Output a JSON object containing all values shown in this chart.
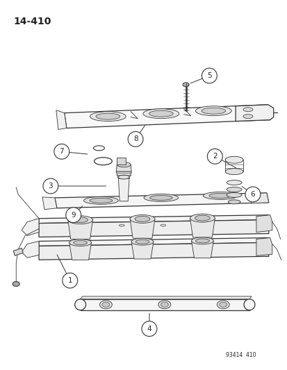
{
  "page_label": "14-410",
  "bottom_label": "93414  410",
  "background_color": "#ffffff",
  "line_color": "#333333",
  "text_color": "#222222",
  "fig_width": 4.14,
  "fig_height": 5.33,
  "dpi": 100
}
